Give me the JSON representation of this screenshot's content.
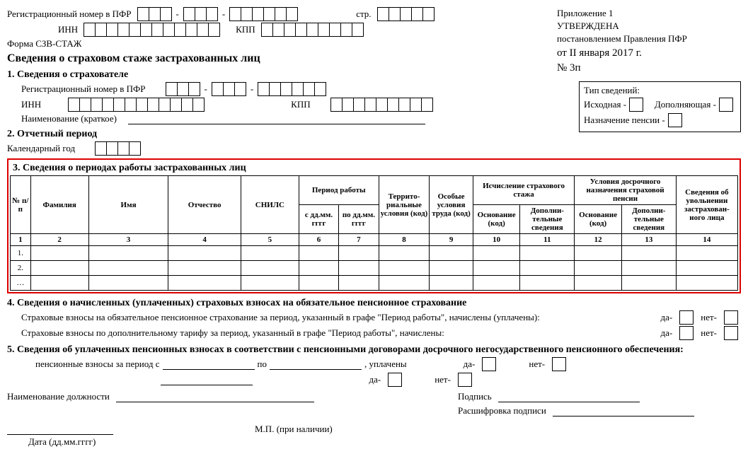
{
  "header": {
    "reg_label": "Регистрационный номер в ПФР",
    "inn_label": "ИНН",
    "kpp_label": "КПП",
    "page_label": "стр.",
    "form_label": "Форма СЗВ-СТАЖ",
    "title": "Сведения о страховом стаже застрахованных лиц",
    "appendix": "Приложение 1",
    "approved": "УТВЕРЖДЕНА",
    "by": "постановлением Правления ПФР",
    "date": "от II января 2017 г.",
    "number": "№ 3п"
  },
  "typebox": {
    "title": "Тип сведений:",
    "original": "Исходная -",
    "additional": "Дополняющая -",
    "pension": "Назначение пенсии -"
  },
  "s1": {
    "title": "1. Сведения о страхователе",
    "reg_label": "Регистрационный номер в ПФР",
    "inn_label": "ИНН",
    "kpp_label": "КПП",
    "name_label": "Наименование (краткое)"
  },
  "s2": {
    "title": "2. Отчетный период",
    "year_label": "Календарный год"
  },
  "s3": {
    "title": "3. Сведения о периодах работы застрахованных лиц",
    "cols": {
      "n": "№ п/п",
      "fam": "Фамилия",
      "name": "Имя",
      "otch": "Отчество",
      "snils": "СНИЛС",
      "period": "Период работы",
      "from": "с дд.мм. гггг",
      "to": "по дд.мм. гггг",
      "terr": "Террито- риальные условия (код)",
      "spec": "Особые условия труда (код)",
      "stazh": "Исчисление страхового стажа",
      "early": "Условия досрочного назначения страховой пенсии",
      "basis": "Основание (код)",
      "extra": "Дополни- тельные сведения",
      "dismiss": "Сведения об увольнении застрахован- ного лица"
    },
    "nums": [
      "1",
      "2",
      "3",
      "4",
      "5",
      "6",
      "7",
      "8",
      "9",
      "10",
      "11",
      "12",
      "13",
      "14"
    ],
    "rows": [
      "1.",
      "2.",
      "…"
    ]
  },
  "s4": {
    "title": "4. Сведения о начисленных (уплаченных) страховых взносах на обязательное пенсионное страхование",
    "line1": "Страховые взносы на обязательное пенсионное страхование за период, указанный в графе \"Период работы\", начислены (уплачены):",
    "line2": "Страховые взносы по дополнительному тарифу за период, указанный в графе \"Период работы\", начислены:",
    "yes": "да-",
    "no": "нет-"
  },
  "s5": {
    "title": "5. Сведения об уплаченных пенсионных взносах в соответствии с пенсионными договорами досрочного негосударственного пенсионного обеспечения:",
    "line": "пенсионные взносы за период с",
    "po": "по",
    "paid": ", уплачены"
  },
  "footer": {
    "position": "Наименование должности",
    "sign": "Подпись",
    "decode": "Расшифровка подписи",
    "date": "Дата (дд.мм.гггг)",
    "mp": "М.П. (при наличии)"
  }
}
